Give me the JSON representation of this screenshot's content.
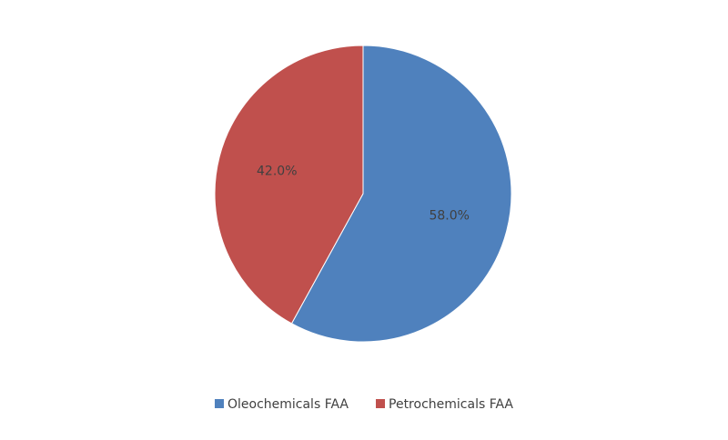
{
  "chart_data": {
    "type": "pie",
    "categories": [
      "Oleochemicals FAA",
      "Petrochemicals FAA"
    ],
    "values": [
      58.0,
      42.0
    ],
    "value_labels": [
      "58.0%",
      "42.0%"
    ],
    "colors": [
      "#4f81bd",
      "#c0504d"
    ],
    "legend": "bottom"
  }
}
